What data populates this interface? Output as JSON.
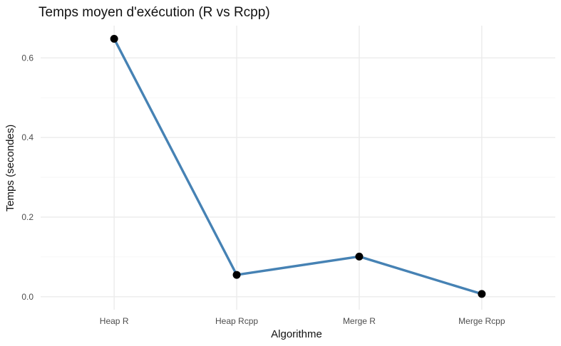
{
  "chart_data": {
    "type": "line",
    "title": "Temps moyen d'exécution (R vs Rcpp)",
    "xlabel": "Algorithme",
    "ylabel": "Temps (secondes)",
    "categories": [
      "Heap R",
      "Heap Rcpp",
      "Merge R",
      "Merge Rcpp"
    ],
    "values": [
      0.648,
      0.055,
      0.101,
      0.007
    ],
    "ylim": [
      -0.0325,
      0.681
    ],
    "yticks": [
      0.0,
      0.2,
      0.4,
      0.6
    ],
    "ytick_labels": [
      "0.0",
      "0.2",
      "0.4",
      "0.6"
    ],
    "grid": true,
    "legend": "none",
    "colors": {
      "line": "#4682B4",
      "point": "#000000",
      "grid": "#EBEBEB"
    }
  }
}
